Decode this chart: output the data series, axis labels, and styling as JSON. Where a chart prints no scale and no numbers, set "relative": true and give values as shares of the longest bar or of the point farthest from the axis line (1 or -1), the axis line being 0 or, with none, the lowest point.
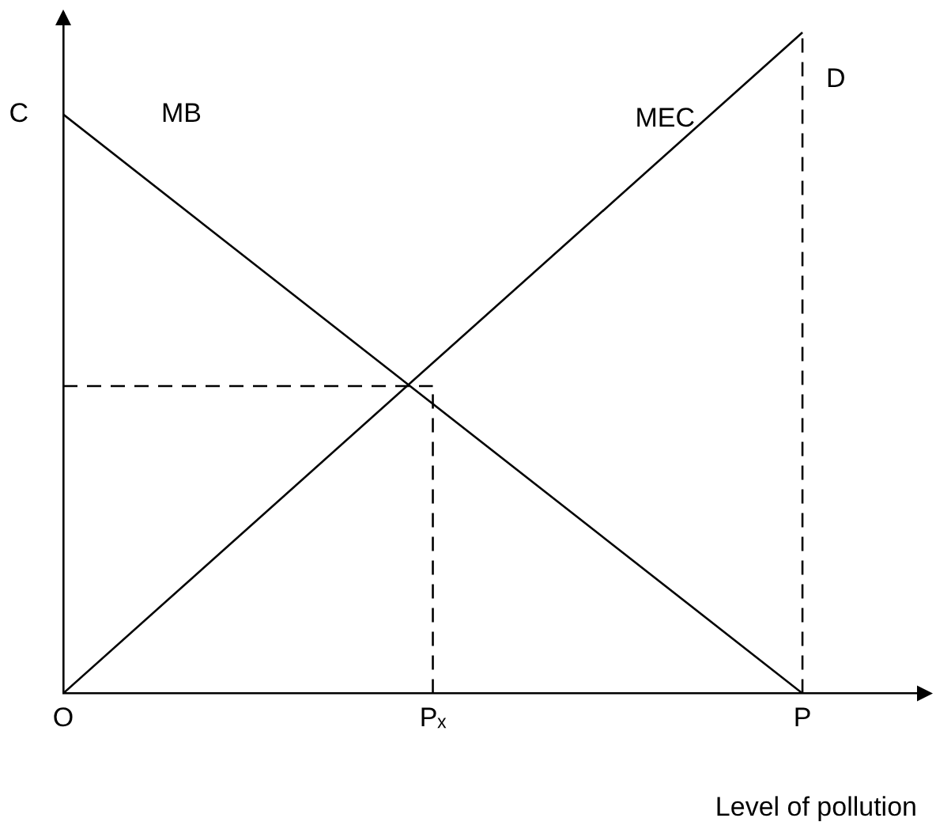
{
  "chart_data": {
    "type": "line",
    "relative": true,
    "xlabel": "Level of pollution",
    "categories": [
      "O",
      "Pₓ",
      "P"
    ],
    "series": [
      {
        "name": "MB",
        "color": "#000000",
        "x": [
          "O",
          "P"
        ],
        "values": [
          0.876,
          0
        ]
      },
      {
        "name": "MEC",
        "color": "#000000",
        "x": [
          "O",
          "P"
        ],
        "values": [
          0,
          1
        ]
      },
      {
        "color": "#000000",
        "line_style": "dashed",
        "x": [
          "O",
          "Pₓ"
        ],
        "values": [
          0.465,
          0.465
        ]
      },
      {
        "color": "#000000",
        "line_style": "dashed",
        "x": [
          "Pₓ",
          "Pₓ"
        ],
        "values": [
          0,
          0.465
        ]
      },
      {
        "color": "#000000",
        "line_style": "dashed",
        "x": [
          "P",
          "P"
        ],
        "values": [
          0,
          1
        ]
      }
    ],
    "annotations": [
      {
        "text": "C",
        "x": "O",
        "y": 0.876
      },
      {
        "text": "D",
        "x": "P",
        "y": 1
      }
    ],
    "legend": false,
    "grid": false,
    "marker": "none"
  }
}
